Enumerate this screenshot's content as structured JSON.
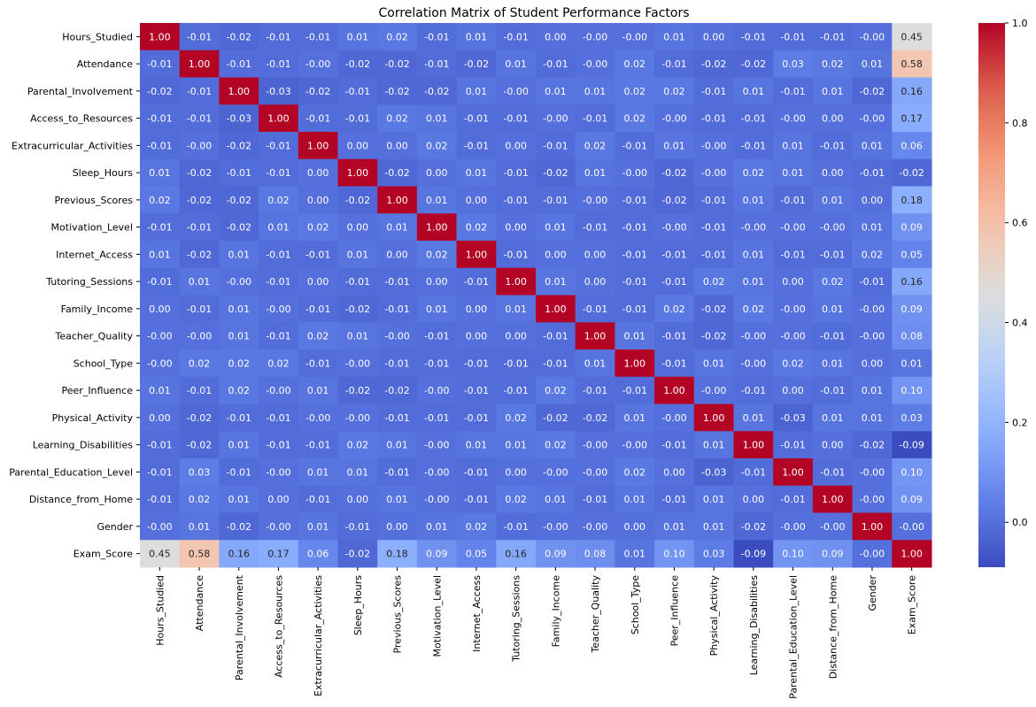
{
  "chart_data": {
    "type": "heatmap",
    "title": "Correlation Matrix of Student Performance Factors",
    "colormap": "coolwarm",
    "color_range": [
      -0.09,
      1.0
    ],
    "colorbar_ticks": [
      0.0,
      0.2,
      0.4,
      0.6,
      0.8,
      1.0
    ],
    "colorbar_tick_labels": [
      "0.0",
      "0.2",
      "0.4",
      "0.6",
      "0.8",
      "1.0"
    ],
    "annotation_format": "0.00",
    "variables": [
      "Hours_Studied",
      "Attendance",
      "Parental_Involvement",
      "Access_to_Resources",
      "Extracurricular_Activities",
      "Sleep_Hours",
      "Previous_Scores",
      "Motivation_Level",
      "Internet_Access",
      "Tutoring_Sessions",
      "Family_Income",
      "Teacher_Quality",
      "School_Type",
      "Peer_Influence",
      "Physical_Activity",
      "Learning_Disabilities",
      "Parental_Education_Level",
      "Distance_from_Home",
      "Gender",
      "Exam_Score"
    ],
    "matrix": [
      [
        1.0,
        -0.01,
        -0.02,
        -0.01,
        -0.01,
        0.01,
        0.02,
        -0.01,
        0.01,
        -0.01,
        0.0,
        -0.0,
        -0.0,
        0.01,
        0.0,
        -0.01,
        -0.01,
        -0.01,
        -0.0,
        0.45
      ],
      [
        -0.01,
        1.0,
        -0.01,
        -0.01,
        -0.0,
        -0.02,
        -0.02,
        -0.01,
        -0.02,
        0.01,
        -0.01,
        -0.0,
        0.02,
        -0.01,
        -0.02,
        -0.02,
        0.03,
        0.02,
        0.01,
        0.58
      ],
      [
        -0.02,
        -0.01,
        1.0,
        -0.03,
        -0.02,
        -0.01,
        -0.02,
        -0.02,
        0.01,
        -0.0,
        0.01,
        0.01,
        0.02,
        0.02,
        -0.01,
        0.01,
        -0.01,
        0.01,
        -0.02,
        0.16
      ],
      [
        -0.01,
        -0.01,
        -0.03,
        1.0,
        -0.01,
        -0.01,
        0.02,
        0.01,
        -0.01,
        -0.01,
        -0.0,
        -0.01,
        0.02,
        -0.0,
        -0.01,
        -0.01,
        -0.0,
        0.0,
        -0.0,
        0.17
      ],
      [
        -0.01,
        -0.0,
        -0.02,
        -0.01,
        1.0,
        0.0,
        0.0,
        0.02,
        -0.01,
        0.0,
        -0.01,
        0.02,
        -0.01,
        0.01,
        -0.0,
        -0.01,
        0.01,
        -0.01,
        0.01,
        0.06
      ],
      [
        0.01,
        -0.02,
        -0.01,
        -0.01,
        0.0,
        1.0,
        -0.02,
        0.0,
        0.01,
        -0.01,
        -0.02,
        0.01,
        -0.0,
        -0.02,
        -0.0,
        0.02,
        0.01,
        0.0,
        -0.01,
        -0.02
      ],
      [
        0.02,
        -0.02,
        -0.02,
        0.02,
        0.0,
        -0.02,
        1.0,
        0.01,
        0.0,
        -0.01,
        -0.01,
        -0.0,
        -0.01,
        -0.02,
        -0.01,
        0.01,
        -0.01,
        0.01,
        0.0,
        0.18
      ],
      [
        -0.01,
        -0.01,
        -0.02,
        0.01,
        0.02,
        0.0,
        0.01,
        1.0,
        0.02,
        0.0,
        0.01,
        -0.01,
        -0.01,
        -0.0,
        -0.01,
        -0.0,
        -0.0,
        -0.0,
        0.01,
        0.09
      ],
      [
        0.01,
        -0.02,
        0.01,
        -0.01,
        -0.01,
        0.01,
        0.0,
        0.02,
        1.0,
        -0.01,
        0.0,
        0.0,
        -0.01,
        -0.01,
        -0.01,
        0.01,
        -0.01,
        -0.01,
        0.02,
        0.05
      ],
      [
        -0.01,
        0.01,
        -0.0,
        -0.01,
        0.0,
        -0.01,
        -0.01,
        0.0,
        -0.01,
        1.0,
        0.01,
        0.0,
        -0.01,
        -0.01,
        0.02,
        0.01,
        0.0,
        0.02,
        -0.01,
        0.16
      ],
      [
        0.0,
        -0.01,
        0.01,
        -0.0,
        -0.01,
        -0.02,
        -0.01,
        0.01,
        0.0,
        0.01,
        1.0,
        -0.01,
        -0.01,
        0.02,
        -0.02,
        0.02,
        -0.0,
        0.01,
        -0.0,
        0.09
      ],
      [
        -0.0,
        -0.0,
        0.01,
        -0.01,
        0.02,
        0.01,
        -0.0,
        -0.01,
        0.0,
        0.0,
        -0.01,
        1.0,
        0.01,
        -0.01,
        -0.02,
        -0.0,
        -0.0,
        -0.01,
        -0.0,
        0.08
      ],
      [
        -0.0,
        0.02,
        0.02,
        0.02,
        -0.01,
        -0.0,
        -0.01,
        -0.01,
        -0.01,
        -0.01,
        -0.01,
        0.01,
        1.0,
        -0.01,
        0.01,
        -0.0,
        0.02,
        0.01,
        0.0,
        0.01
      ],
      [
        0.01,
        -0.01,
        0.02,
        -0.0,
        0.01,
        -0.02,
        -0.02,
        -0.0,
        -0.01,
        -0.01,
        0.02,
        -0.01,
        -0.01,
        1.0,
        -0.0,
        -0.01,
        0.0,
        -0.01,
        0.01,
        0.1
      ],
      [
        0.0,
        -0.02,
        -0.01,
        -0.01,
        -0.0,
        -0.0,
        -0.01,
        -0.01,
        -0.01,
        0.02,
        -0.02,
        -0.02,
        0.01,
        -0.0,
        1.0,
        0.01,
        -0.03,
        0.01,
        0.01,
        0.03
      ],
      [
        -0.01,
        -0.02,
        0.01,
        -0.01,
        -0.01,
        0.02,
        0.01,
        -0.0,
        0.01,
        0.01,
        0.02,
        -0.0,
        -0.0,
        -0.01,
        0.01,
        1.0,
        -0.01,
        0.0,
        -0.02,
        -0.09
      ],
      [
        -0.01,
        0.03,
        -0.01,
        -0.0,
        0.01,
        0.01,
        -0.01,
        -0.0,
        -0.01,
        0.0,
        -0.0,
        -0.0,
        0.02,
        0.0,
        -0.03,
        -0.01,
        1.0,
        -0.01,
        -0.0,
        0.1
      ],
      [
        -0.01,
        0.02,
        0.01,
        0.0,
        -0.01,
        0.0,
        0.01,
        -0.0,
        -0.01,
        0.02,
        0.01,
        -0.01,
        0.01,
        -0.01,
        0.01,
        0.0,
        -0.01,
        1.0,
        -0.0,
        0.09
      ],
      [
        -0.0,
        0.01,
        -0.02,
        -0.0,
        0.01,
        -0.01,
        0.0,
        0.01,
        0.02,
        -0.01,
        -0.0,
        -0.0,
        0.0,
        0.01,
        0.01,
        -0.02,
        -0.0,
        -0.0,
        1.0,
        -0.0
      ],
      [
        0.45,
        0.58,
        0.16,
        0.17,
        0.06,
        -0.02,
        0.18,
        0.09,
        0.05,
        0.16,
        0.09,
        0.08,
        0.01,
        0.1,
        0.03,
        -0.09,
        0.1,
        0.09,
        -0.0,
        1.0
      ]
    ]
  }
}
